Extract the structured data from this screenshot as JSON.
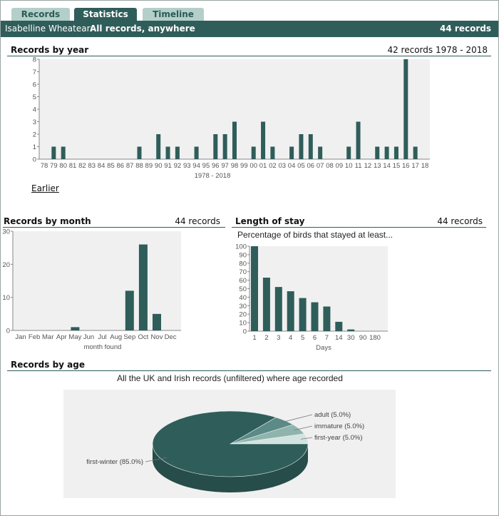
{
  "tabs": [
    {
      "label": "Records"
    },
    {
      "label": "Statistics"
    },
    {
      "label": "Timeline"
    }
  ],
  "header": {
    "species": "Isabelline Wheatear:",
    "scope": "All records, anywhere",
    "count": "44 records"
  },
  "by_year": {
    "title": "Records by year",
    "summary": "42 records 1978 - 2018",
    "earlier_link": "Earlier"
  },
  "by_month": {
    "title": "Records by month",
    "summary": "44 records"
  },
  "length_of_stay": {
    "title": "Length of stay",
    "summary": "44 records",
    "subtitle": "Percentage of birds that stayed at least..."
  },
  "by_age": {
    "title": "Records by age",
    "subtitle": "All the UK and Irish records (unfiltered) where age recorded"
  },
  "colors": {
    "bar": "#2f5d5a",
    "plot_bg": "#f0f0f0",
    "accent": "#2f5d5a"
  },
  "chart_data": [
    {
      "type": "bar",
      "title": "",
      "categories": [
        "78",
        "79",
        "80",
        "81",
        "82",
        "83",
        "84",
        "85",
        "86",
        "87",
        "88",
        "89",
        "90",
        "91",
        "92",
        "93",
        "94",
        "95",
        "96",
        "97",
        "98",
        "99",
        "00",
        "01",
        "02",
        "03",
        "04",
        "05",
        "06",
        "07",
        "08",
        "09",
        "10",
        "11",
        "12",
        "13",
        "14",
        "15",
        "16",
        "17",
        "18"
      ],
      "values": [
        0,
        1,
        1,
        0,
        0,
        0,
        0,
        0,
        0,
        0,
        1,
        0,
        2,
        1,
        1,
        0,
        1,
        0,
        2,
        2,
        3,
        0,
        1,
        3,
        1,
        0,
        1,
        2,
        2,
        1,
        0,
        0,
        1,
        3,
        0,
        1,
        1,
        1,
        8,
        1,
        0
      ],
      "xlabel": "1978 - 2018",
      "ylabel": "",
      "ylim": [
        0,
        8
      ],
      "yticks": [
        0,
        1,
        2,
        3,
        4,
        5,
        6,
        7,
        8
      ]
    },
    {
      "type": "bar",
      "title": "",
      "categories": [
        "Jan",
        "Feb",
        "Mar",
        "Apr",
        "May",
        "Jun",
        "Jul",
        "Aug",
        "Sep",
        "Oct",
        "Nov",
        "Dec"
      ],
      "values": [
        0,
        0,
        0,
        0,
        1,
        0,
        0,
        0,
        12,
        26,
        5,
        0
      ],
      "xlabel": "month found",
      "ylabel": "",
      "ylim": [
        0,
        30
      ],
      "yticks": [
        0,
        10,
        20,
        30
      ]
    },
    {
      "type": "bar",
      "title": "",
      "categories": [
        "1",
        "2",
        "3",
        "4",
        "5",
        "6",
        "7",
        "14",
        "30",
        "90",
        "180"
      ],
      "values": [
        100,
        63,
        52,
        47,
        39,
        34,
        29,
        11,
        2,
        0,
        0
      ],
      "xlabel": "Days",
      "ylabel": "",
      "ylim": [
        0,
        100
      ],
      "yticks": [
        0,
        10,
        20,
        30,
        40,
        50,
        60,
        70,
        80,
        90,
        100
      ]
    },
    {
      "type": "pie",
      "title": "",
      "slices": [
        {
          "label": "first-winter (85.0%)",
          "value": 85.0,
          "color": "#2f5d5a"
        },
        {
          "label": "adult (5.0%)",
          "value": 5.0,
          "color": "#5c8a86"
        },
        {
          "label": "immature (5.0%)",
          "value": 5.0,
          "color": "#8fb4ae"
        },
        {
          "label": "first-year (5.0%)",
          "value": 5.0,
          "color": "#d3e3df"
        }
      ]
    }
  ]
}
